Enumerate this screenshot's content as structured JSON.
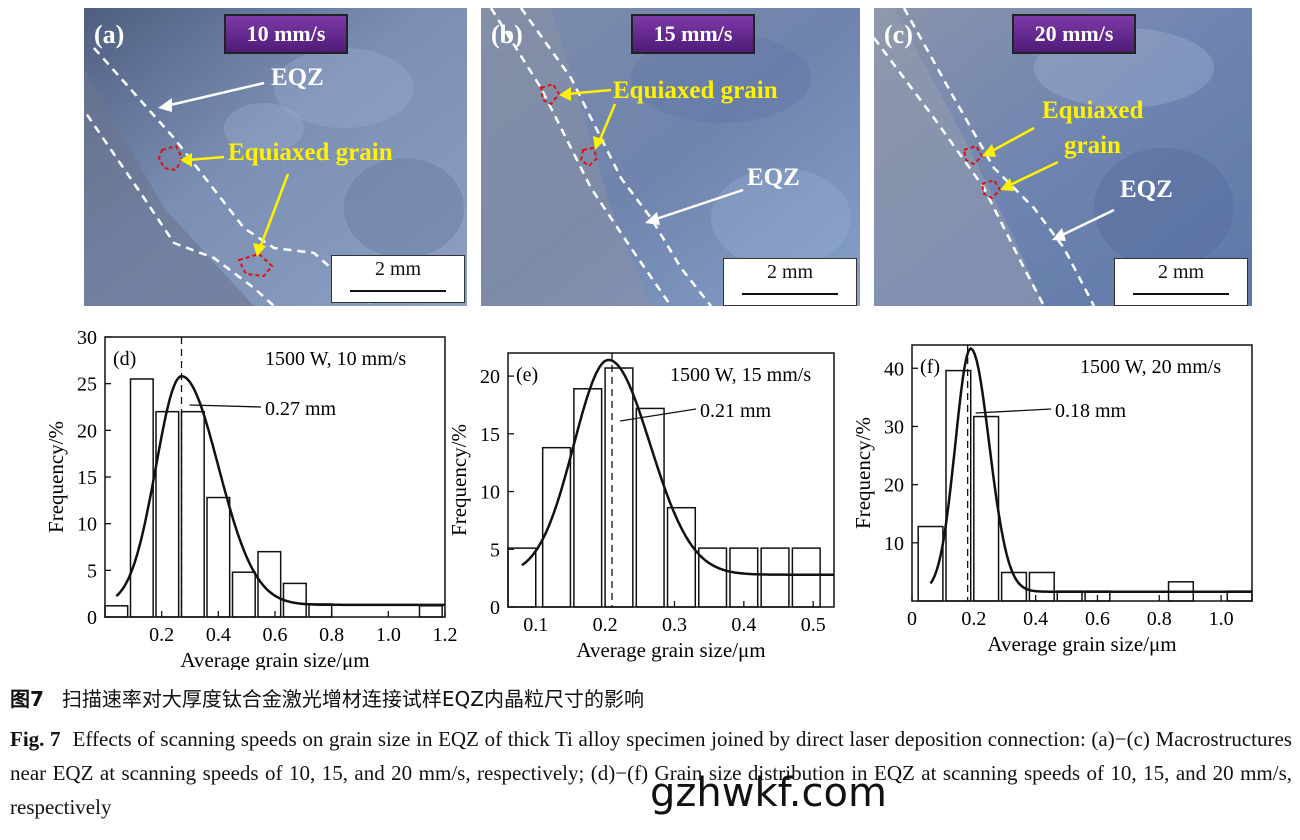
{
  "panels": [
    {
      "letter": "(a)",
      "speed": "10 mm/s",
      "eqz": "EQZ",
      "equiaxed": "Equiaxed grain",
      "scale": "2 mm"
    },
    {
      "letter": "(b)",
      "speed": "15 mm/s",
      "eqz": "EQZ",
      "equiaxed": "Equiaxed grain",
      "scale": "2 mm"
    },
    {
      "letter": "(c)",
      "speed": "20 mm/s",
      "eqz": "EQZ",
      "equiaxed_line1": "Equiaxed",
      "equiaxed_line2": "grain",
      "scale": "2 mm"
    }
  ],
  "chart_data": [
    {
      "type": "bar",
      "panel": "(d)",
      "annotation": "1500 W, 10 mm/s",
      "peak_label": "0.27 mm",
      "peak_x": 0.27,
      "xlabel": "Average grain size/μm",
      "ylabel": "Frequency/%",
      "xlim": [
        0,
        1.2
      ],
      "ylim": [
        0,
        30
      ],
      "xticks": [
        0.2,
        0.4,
        0.6,
        0.8,
        1.0,
        1.2
      ],
      "yticks": [
        0,
        5,
        10,
        15,
        20,
        25,
        30
      ],
      "bar_width": 0.08,
      "x": [
        0.04,
        0.13,
        0.22,
        0.31,
        0.4,
        0.49,
        0.58,
        0.67,
        0.76,
        1.15
      ],
      "values": [
        1.2,
        25.5,
        22.0,
        22.0,
        12.8,
        4.8,
        7.0,
        3.6,
        1.4,
        1.2
      ],
      "fit": {
        "amp": 24.5,
        "mu": 0.27,
        "sl": 0.09,
        "sr": 0.13,
        "base": 1.3
      }
    },
    {
      "type": "bar",
      "panel": "(e)",
      "annotation": "1500 W, 15 mm/s",
      "peak_label": "0.21 mm",
      "peak_x": 0.21,
      "xlabel": "Average grain size/μm",
      "ylabel": "Frequency/%",
      "xlim": [
        0.06,
        0.53
      ],
      "ylim": [
        0,
        22
      ],
      "xticks": [
        0.1,
        0.2,
        0.3,
        0.4,
        0.5
      ],
      "yticks": [
        0,
        5,
        10,
        15,
        20
      ],
      "bar_width": 0.04,
      "x": [
        0.08,
        0.13,
        0.175,
        0.22,
        0.265,
        0.31,
        0.355,
        0.4,
        0.445,
        0.49
      ],
      "values": [
        5.1,
        13.8,
        18.9,
        20.7,
        17.2,
        8.6,
        5.1,
        5.1,
        5.1,
        5.1
      ],
      "fit": {
        "amp": 18.6,
        "mu": 0.205,
        "sl": 0.05,
        "sr": 0.06,
        "base": 2.8
      }
    },
    {
      "type": "bar",
      "panel": "(f)",
      "annotation": "1500 W, 20 mm/s",
      "peak_label": "0.18 mm",
      "peak_x": 0.18,
      "xlabel": "Average grain size/μm",
      "ylabel": "Frequency/%",
      "xlim": [
        0,
        1.1
      ],
      "ylim": [
        0,
        44
      ],
      "xticks": [
        0,
        0.2,
        0.4,
        0.6,
        0.8,
        1.0
      ],
      "yticks": [
        10,
        20,
        30,
        40
      ],
      "bar_width": 0.08,
      "x": [
        0.06,
        0.15,
        0.24,
        0.33,
        0.42,
        0.51,
        0.6,
        0.87,
        1.06
      ],
      "values": [
        12.8,
        39.6,
        31.7,
        4.9,
        4.9,
        1.7,
        1.7,
        3.3,
        1.7
      ],
      "fit": {
        "amp": 41.8,
        "mu": 0.19,
        "sl": 0.05,
        "sr": 0.06,
        "base": 1.6
      }
    }
  ],
  "caption": {
    "cn_label": "图7",
    "cn_text": "扫描速率对大厚度钛合金激光增材连接试样EQZ内晶粒尺寸的影响",
    "en_label": "Fig. 7",
    "en_text": "Effects of scanning speeds on grain size in EQZ of thick Ti alloy specimen joined by direct laser deposition connection: (a)−(c) Macrostructures near EQZ at scanning speeds of 10, 15, and 20 mm/s, respectively; (d)−(f) Grain size distribution in EQZ at scanning speeds of 10, 15, and 20 mm/s, respectively"
  },
  "watermark": "gzhwkf.com"
}
